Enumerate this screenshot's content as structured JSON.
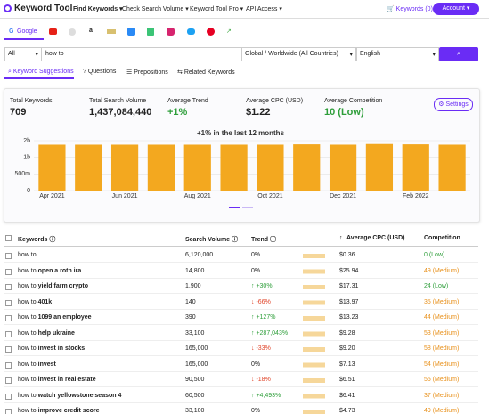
{
  "nav": {
    "logo": "Keyword Tool",
    "menu": [
      "Find Keywords",
      "Check Search Volume",
      "Keyword Tool Pro",
      "API Access"
    ],
    "keywords": "Keywords (0)",
    "account": "Account"
  },
  "sources": {
    "active": "Google"
  },
  "search": {
    "scope": "All",
    "query": "how to",
    "location": "Global / Worldwide (All Countries)",
    "language": "English"
  },
  "tabs": [
    "Keyword Suggestions",
    "Questions",
    "Prepositions",
    "Related Keywords"
  ],
  "stats": [
    {
      "label": "Total Keywords",
      "value": "709"
    },
    {
      "label": "Total Search Volume",
      "value": "1,437,084,440"
    },
    {
      "label": "Average Trend",
      "value": "+1%",
      "color": "#2e9e3a"
    },
    {
      "label": "Average CPC (USD)",
      "value": "$1.22"
    },
    {
      "label": "Average Competition",
      "value": "10 (Low)",
      "color": "#2e9e3a"
    }
  ],
  "settings": "Settings",
  "chart_data": {
    "type": "bar",
    "title": "+1% in the last 12 months",
    "categories": [
      "Apr 2021",
      null,
      "Jun 2021",
      null,
      "Aug 2021",
      null,
      "Oct 2021",
      null,
      "Dec 2021",
      null,
      "Feb 2022",
      null
    ],
    "values": [
      1380000000,
      1380000000,
      1380000000,
      1380000000,
      1380000000,
      1380000000,
      1380000000,
      1390000000,
      1380000000,
      1400000000,
      1390000000,
      1380000000
    ],
    "color": "#f3a81f",
    "ylim": [
      0,
      1500000000
    ],
    "yticks": [
      0,
      {
        "value": 500000000,
        "label": "500m"
      },
      {
        "value": 1000000000,
        "label": "1b"
      },
      {
        "value": 1500000000,
        "label": "2b"
      }
    ],
    "grid": true
  },
  "table": {
    "headers": [
      "Keywords",
      "Search Volume",
      "Trend",
      "Average CPC (USD)",
      "Competition"
    ],
    "rows": [
      {
        "base": "how to",
        "volume": "6,120,000",
        "trend": "0%",
        "cpc": "$0.36",
        "competition": "0 (Low)",
        "competition_color": "#2e9e3a"
      },
      {
        "base": "how to",
        "bold": "open a roth ira",
        "volume": "14,800",
        "trend": "0%",
        "cpc": "$25.94",
        "competition": "49 (Medium)",
        "competition_color": "#e8901a"
      },
      {
        "base": "how to",
        "bold": "yield farm crypto",
        "volume": "1,900",
        "trend": "+30%",
        "cpc": "$17.31",
        "competition": "24 (Low)",
        "competition_color": "#2e9e3a"
      },
      {
        "base": "how to",
        "bold": "401k",
        "volume": "140",
        "trend": "-66%",
        "cpc": "$13.97",
        "competition": "35 (Medium)",
        "competition_color": "#e8901a"
      },
      {
        "base": "how to",
        "bold": "1099 an employee",
        "volume": "390",
        "trend": "+127%",
        "cpc": "$13.23",
        "competition": "44 (Medium)",
        "competition_color": "#e8901a"
      },
      {
        "base": "how to",
        "bold": "help ukraine",
        "volume": "33,100",
        "trend": "+287,043%",
        "cpc": "$9.28",
        "competition": "53 (Medium)",
        "competition_color": "#e8901a"
      },
      {
        "base": "how to",
        "bold": "invest in stocks",
        "volume": "165,000",
        "trend": "-33%",
        "cpc": "$9.20",
        "competition": "58 (Medium)",
        "competition_color": "#e8901a"
      },
      {
        "base": "how to",
        "bold": "invest",
        "volume": "165,000",
        "trend": "0%",
        "cpc": "$7.13",
        "competition": "54 (Medium)",
        "competition_color": "#e8901a"
      },
      {
        "base": "how to",
        "bold": "invest in real estate",
        "volume": "90,500",
        "trend": "-18%",
        "cpc": "$6.51",
        "competition": "55 (Medium)",
        "competition_color": "#e8901a"
      },
      {
        "base": "how to",
        "bold": "watch yellowstone season 4",
        "volume": "60,500",
        "trend": "+4,493%",
        "cpc": "$6.41",
        "competition": "37 (Medium)",
        "competition_color": "#e8901a"
      },
      {
        "base": "how to",
        "bold": "improve credit score",
        "volume": "33,100",
        "trend": "0%",
        "cpc": "$4.73",
        "competition": "49 (Medium)",
        "competition_color": "#e8901a"
      }
    ]
  }
}
